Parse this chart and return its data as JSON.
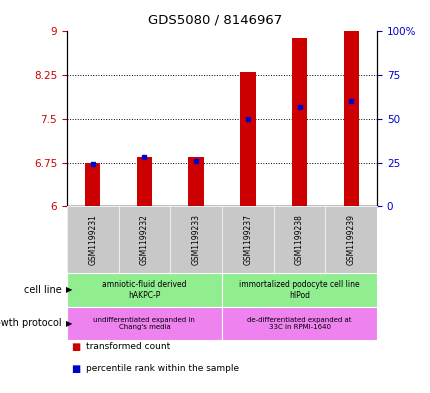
{
  "title": "GDS5080 / 8146967",
  "samples": [
    "GSM1199231",
    "GSM1199232",
    "GSM1199233",
    "GSM1199237",
    "GSM1199238",
    "GSM1199239"
  ],
  "transformed_counts": [
    6.75,
    6.85,
    6.84,
    8.3,
    8.88,
    9.0
  ],
  "percentile_ranks": [
    24,
    28,
    26,
    50,
    57,
    60
  ],
  "ylim_left": [
    6,
    9
  ],
  "ylim_right": [
    0,
    100
  ],
  "yticks_left": [
    6,
    6.75,
    7.5,
    8.25,
    9
  ],
  "yticks_right": [
    0,
    25,
    50,
    75,
    100
  ],
  "ytick_labels_left": [
    "6",
    "6.75",
    "7.5",
    "8.25",
    "9"
  ],
  "ytick_labels_right": [
    "0",
    "25",
    "50",
    "75",
    "100%"
  ],
  "bar_color": "#cc0000",
  "dot_color": "#0000cc",
  "bar_width": 0.3,
  "baseline": 6,
  "cell_line_groups": [
    {
      "label": "amniotic-fluid derived\nhAKPC-P",
      "start": 0,
      "end": 3,
      "color": "#90ee90"
    },
    {
      "label": "immortalized podocyte cell line\nhIPod",
      "start": 3,
      "end": 6,
      "color": "#90ee90"
    }
  ],
  "growth_protocol_groups": [
    {
      "label": "undifferentiated expanded in\nChang's media",
      "start": 0,
      "end": 3,
      "color": "#ee82ee"
    },
    {
      "label": "de-differentiated expanded at\n33C in RPMI-1640",
      "start": 3,
      "end": 6,
      "color": "#ee82ee"
    }
  ],
  "cell_line_label": "cell line",
  "growth_protocol_label": "growth protocol",
  "legend_items": [
    {
      "color": "#cc0000",
      "label": "transformed count"
    },
    {
      "color": "#0000cc",
      "label": "percentile rank within the sample"
    }
  ],
  "tick_label_color_left": "#cc0000",
  "tick_label_color_right": "#0000cc",
  "bg_color_xticklabel": "#c8c8c8"
}
